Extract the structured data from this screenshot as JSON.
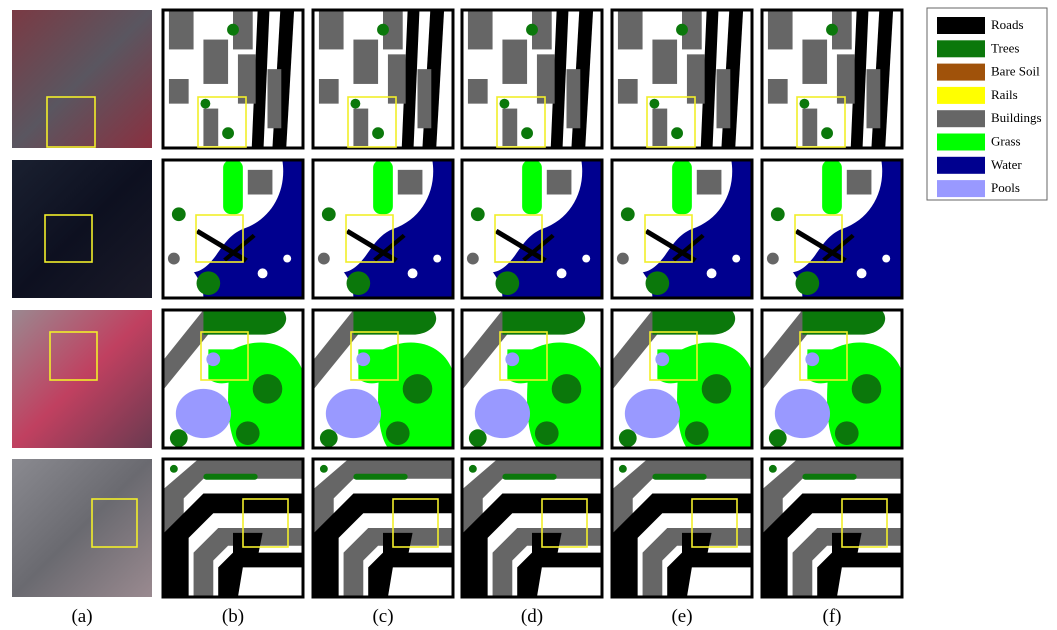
{
  "columns": [
    "(a)",
    "(b)",
    "(c)",
    "(d)",
    "(e)",
    "(f)"
  ],
  "legend": [
    {
      "label": "Roads",
      "color": "#000000"
    },
    {
      "label": "Trees",
      "color": "#0b780b"
    },
    {
      "label": "Bare Soil",
      "color": "#a0520a"
    },
    {
      "label": "Rails",
      "color": "#ffff00"
    },
    {
      "label": "Buildings",
      "color": "#666666"
    },
    {
      "label": "Grass",
      "color": "#00ff00"
    },
    {
      "label": "Water",
      "color": "#00008f"
    },
    {
      "label": "Pools",
      "color": "#9999ff"
    }
  ]
}
